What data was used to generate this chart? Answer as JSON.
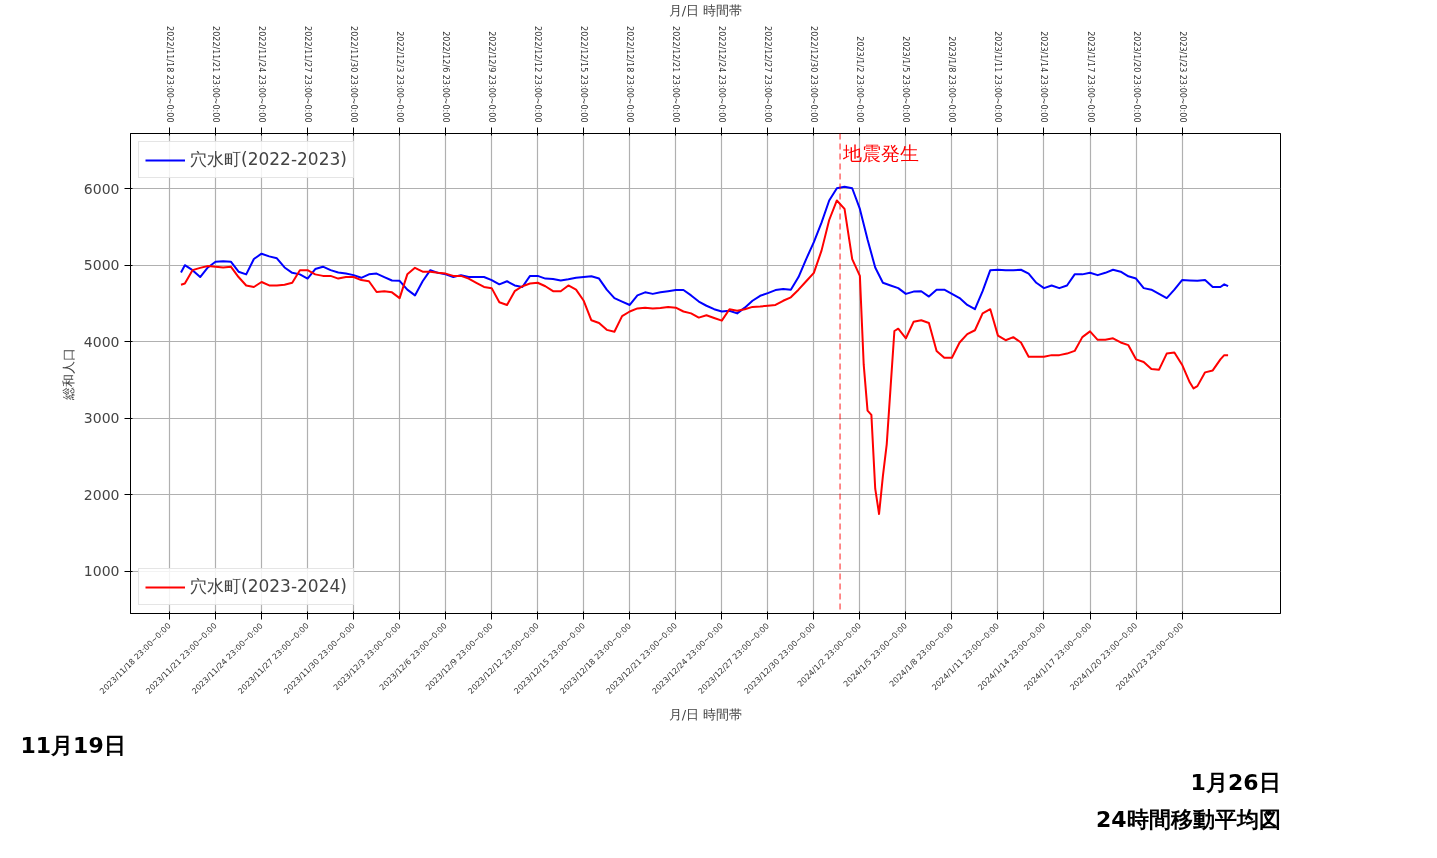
{
  "chart_data": {
    "type": "line",
    "xlabel": "月/日 時間帯",
    "x2label": "月/日 時間帯",
    "ylabel": "総和人口",
    "xlim": [
      "2023-11-16T10:00",
      "2024-01-30T09:00"
    ],
    "x2lim": [
      "2022-11-16T10:00",
      "2023-01-30T09:00"
    ],
    "ylim": [
      450,
      6720
    ],
    "yticks": [
      1000,
      2000,
      3000,
      4000,
      5000,
      6000
    ],
    "xticks": [
      {
        "value": "2023-11-18T23:00",
        "label": "2023/11/18 23:00~0:00"
      },
      {
        "value": "2023-11-21T23:00",
        "label": "2023/11/21 23:00~0:00"
      },
      {
        "value": "2023-11-24T23:00",
        "label": "2023/11/24 23:00~0:00"
      },
      {
        "value": "2023-11-27T23:00",
        "label": "2023/11/27 23:00~0:00"
      },
      {
        "value": "2023-11-30T23:00",
        "label": "2023/11/30 23:00~0:00"
      },
      {
        "value": "2023-12-03T23:00",
        "label": "2023/12/3 23:00~0:00"
      },
      {
        "value": "2023-12-06T23:00",
        "label": "2023/12/6 23:00~0:00"
      },
      {
        "value": "2023-12-09T23:00",
        "label": "2023/12/9 23:00~0:00"
      },
      {
        "value": "2023-12-12T23:00",
        "label": "2023/12/12 23:00~0:00"
      },
      {
        "value": "2023-12-15T23:00",
        "label": "2023/12/15 23:00~0:00"
      },
      {
        "value": "2023-12-18T23:00",
        "label": "2023/12/18 23:00~0:00"
      },
      {
        "value": "2023-12-21T23:00",
        "label": "2023/12/21 23:00~0:00"
      },
      {
        "value": "2023-12-24T23:00",
        "label": "2023/12/24 23:00~0:00"
      },
      {
        "value": "2023-12-27T23:00",
        "label": "2023/12/27 23:00~0:00"
      },
      {
        "value": "2023-12-30T23:00",
        "label": "2023/12/30 23:00~0:00"
      },
      {
        "value": "2024-01-02T23:00",
        "label": "2024/1/2 23:00~0:00"
      },
      {
        "value": "2024-01-05T23:00",
        "label": "2024/1/5 23:00~0:00"
      },
      {
        "value": "2024-01-08T23:00",
        "label": "2024/1/8 23:00~0:00"
      },
      {
        "value": "2024-01-11T23:00",
        "label": "2024/1/11 23:00~0:00"
      },
      {
        "value": "2024-01-14T23:00",
        "label": "2024/1/14 23:00~0:00"
      },
      {
        "value": "2024-01-17T23:00",
        "label": "2024/1/17 23:00~0:00"
      },
      {
        "value": "2024-01-20T23:00",
        "label": "2024/1/20 23:00~0:00"
      },
      {
        "value": "2024-01-23T23:00",
        "label": "2024/1/23 23:00~0:00"
      }
    ],
    "x2ticks": [
      {
        "value": "2022-11-18T23:00",
        "label": "2022/11/18 23:00~0:00"
      },
      {
        "value": "2022-11-21T23:00",
        "label": "2022/11/21 23:00~0:00"
      },
      {
        "value": "2022-11-24T23:00",
        "label": "2022/11/24 23:00~0:00"
      },
      {
        "value": "2022-11-27T23:00",
        "label": "2022/11/27 23:00~0:00"
      },
      {
        "value": "2022-11-30T23:00",
        "label": "2022/11/30 23:00~0:00"
      },
      {
        "value": "2022-12-03T23:00",
        "label": "2022/12/3 23:00~0:00"
      },
      {
        "value": "2022-12-06T23:00",
        "label": "2022/12/6 23:00~0:00"
      },
      {
        "value": "2022-12-09T23:00",
        "label": "2022/12/9 23:00~0:00"
      },
      {
        "value": "2022-12-12T23:00",
        "label": "2022/12/12 23:00~0:00"
      },
      {
        "value": "2022-12-15T23:00",
        "label": "2022/12/15 23:00~0:00"
      },
      {
        "value": "2022-12-18T23:00",
        "label": "2022/12/18 23:00~0:00"
      },
      {
        "value": "2022-12-21T23:00",
        "label": "2022/12/21 23:00~0:00"
      },
      {
        "value": "2022-12-24T23:00",
        "label": "2022/12/24 23:00~0:00"
      },
      {
        "value": "2022-12-27T23:00",
        "label": "2022/12/27 23:00~0:00"
      },
      {
        "value": "2022-12-30T23:00",
        "label": "2022/12/30 23:00~0:00"
      },
      {
        "value": "2023-01-02T23:00",
        "label": "2023/1/2 23:00~0:00"
      },
      {
        "value": "2023-01-05T23:00",
        "label": "2023/1/5 23:00~0:00"
      },
      {
        "value": "2023-01-08T23:00",
        "label": "2023/1/8 23:00~0:00"
      },
      {
        "value": "2023-01-11T23:00",
        "label": "2023/1/11 23:00~0:00"
      },
      {
        "value": "2023-01-14T23:00",
        "label": "2023/1/14 23:00~0:00"
      },
      {
        "value": "2023-01-17T23:00",
        "label": "2023/1/17 23:00~0:00"
      },
      {
        "value": "2023-01-20T23:00",
        "label": "2023/1/20 23:00~0:00"
      },
      {
        "value": "2023-01-23T23:00",
        "label": "2023/1/23 23:00~0:00"
      }
    ],
    "grid": true,
    "legend": "left",
    "ref_lines": [
      {
        "axis": "x",
        "value": "2024-01-01T16:00",
        "label": "地震発生",
        "color": "#ff0000",
        "line_style": "dashed"
      }
    ],
    "annotations": [
      "11月19日",
      "1月26日",
      "24時間移動平均図"
    ],
    "series": [
      {
        "name": "穴水町(2022-2023)",
        "color": "#0000ff",
        "axis": "x2",
        "x": [
          "2022-11-19T17:00",
          "2022-11-19T23:00",
          "2022-11-20T11:00",
          "2022-11-20T23:00",
          "2022-11-21T11:00",
          "2022-11-21T23:00",
          "2022-11-22T11:00",
          "2022-11-22T23:00",
          "2022-11-23T11:00",
          "2022-11-23T23:00",
          "2022-11-24T11:00",
          "2022-11-24T23:00",
          "2022-11-25T11:00",
          "2022-11-25T23:00",
          "2022-11-26T11:00",
          "2022-11-26T23:00",
          "2022-11-27T11:00",
          "2022-11-27T23:00",
          "2022-11-28T11:00",
          "2022-11-28T23:00",
          "2022-11-29T11:00",
          "2022-11-29T23:00",
          "2022-11-30T11:00",
          "2022-11-30T23:00",
          "2022-12-01T11:00",
          "2022-12-01T23:00",
          "2022-12-02T11:00",
          "2022-12-02T23:00",
          "2022-12-03T11:00",
          "2022-12-03T23:00",
          "2022-12-04T11:00",
          "2022-12-04T23:00",
          "2022-12-05T11:00",
          "2022-12-05T23:00",
          "2022-12-06T11:00",
          "2022-12-06T23:00",
          "2022-12-07T11:00",
          "2022-12-07T23:00",
          "2022-12-08T11:00",
          "2022-12-08T23:00",
          "2022-12-09T11:00",
          "2022-12-09T23:00",
          "2022-12-10T11:00",
          "2022-12-10T23:00",
          "2022-12-11T11:00",
          "2022-12-11T23:00",
          "2022-12-12T11:00",
          "2022-12-12T23:00",
          "2022-12-13T11:00",
          "2022-12-13T23:00",
          "2022-12-14T11:00",
          "2022-12-14T23:00",
          "2022-12-15T11:00",
          "2022-12-15T23:00",
          "2022-12-16T11:00",
          "2022-12-16T23:00",
          "2022-12-17T11:00",
          "2022-12-17T23:00",
          "2022-12-18T11:00",
          "2022-12-18T23:00",
          "2022-12-19T11:00",
          "2022-12-19T23:00",
          "2022-12-20T11:00",
          "2022-12-20T23:00",
          "2022-12-21T11:00",
          "2022-12-21T23:00",
          "2022-12-22T11:00",
          "2022-12-22T23:00",
          "2022-12-23T11:00",
          "2022-12-23T23:00",
          "2022-12-24T11:00",
          "2022-12-24T23:00",
          "2022-12-25T11:00",
          "2022-12-25T23:00",
          "2022-12-26T11:00",
          "2022-12-26T23:00",
          "2022-12-27T11:00",
          "2022-12-27T23:00",
          "2022-12-28T11:00",
          "2022-12-28T23:00",
          "2022-12-29T11:00",
          "2022-12-29T23:00",
          "2022-12-30T11:00",
          "2022-12-30T23:00",
          "2022-12-31T11:00",
          "2022-12-31T23:00",
          "2023-01-01T11:00",
          "2023-01-01T23:00",
          "2023-01-02T11:00",
          "2023-01-02T23:00",
          "2023-01-03T11:00",
          "2023-01-03T23:00",
          "2023-01-04T11:00",
          "2023-01-04T23:00",
          "2023-01-05T11:00",
          "2023-01-05T23:00",
          "2023-01-06T11:00",
          "2023-01-06T23:00",
          "2023-01-07T11:00",
          "2023-01-07T23:00",
          "2023-01-08T11:00",
          "2023-01-08T23:00",
          "2023-01-09T11:00",
          "2023-01-09T23:00",
          "2023-01-10T11:00",
          "2023-01-10T23:00",
          "2023-01-11T11:00",
          "2023-01-11T23:00",
          "2023-01-12T11:00",
          "2023-01-12T23:00",
          "2023-01-13T11:00",
          "2023-01-13T23:00",
          "2023-01-14T11:00",
          "2023-01-14T23:00",
          "2023-01-15T11:00",
          "2023-01-15T23:00",
          "2023-01-16T11:00",
          "2023-01-16T23:00",
          "2023-01-17T11:00",
          "2023-01-17T23:00",
          "2023-01-18T11:00",
          "2023-01-18T23:00",
          "2023-01-19T11:00",
          "2023-01-19T23:00",
          "2023-01-20T11:00",
          "2023-01-20T23:00",
          "2023-01-21T11:00",
          "2023-01-21T23:00",
          "2023-01-22T11:00",
          "2023-01-22T23:00",
          "2023-01-23T11:00",
          "2023-01-23T23:00",
          "2023-01-24T11:00",
          "2023-01-24T23:00",
          "2023-01-25T11:00",
          "2023-01-25T23:00",
          "2023-01-26T11:00",
          "2023-01-26T17:00",
          "2023-01-26T23:00"
        ],
        "values": [
          4905,
          5000,
          4935,
          4845,
          4970,
          5045,
          5050,
          5045,
          4915,
          4880,
          5080,
          5150,
          5115,
          5090,
          4970,
          4900,
          4880,
          4825,
          4950,
          4980,
          4935,
          4905,
          4890,
          4870,
          4835,
          4880,
          4890,
          4845,
          4800,
          4795,
          4680,
          4605,
          4790,
          4935,
          4900,
          4880,
          4845,
          4870,
          4845,
          4845,
          4845,
          4805,
          4750,
          4790,
          4735,
          4715,
          4860,
          4860,
          4825,
          4820,
          4800,
          4815,
          4835,
          4845,
          4855,
          4825,
          4680,
          4570,
          4525,
          4480,
          4605,
          4645,
          4625,
          4645,
          4660,
          4675,
          4675,
          4605,
          4525,
          4470,
          4425,
          4395,
          4405,
          4370,
          4445,
          4535,
          4600,
          4635,
          4675,
          4690,
          4680,
          4845,
          5080,
          5300,
          5555,
          5845,
          6005,
          6025,
          6005,
          5735,
          5335,
          4970,
          4770,
          4735,
          4700,
          4625,
          4655,
          4660,
          4590,
          4680,
          4680,
          4625,
          4570,
          4480,
          4425,
          4660,
          4935,
          4940,
          4935,
          4935,
          4940,
          4890,
          4770,
          4700,
          4735,
          4700,
          4735,
          4880,
          4880,
          4900,
          4870,
          4900,
          4940,
          4915,
          4855,
          4825,
          4700,
          4680,
          4625,
          4570,
          4680,
          4805,
          4800,
          4795,
          4805,
          4715,
          4715,
          4750,
          4725
        ]
      },
      {
        "name": "穴水町(2023-2024)",
        "color": "#ff0000",
        "x": [
          "2023-11-19T17:00",
          "2023-11-19T23:00",
          "2023-11-20T11:00",
          "2023-11-20T23:00",
          "2023-11-21T11:00",
          "2023-11-21T23:00",
          "2023-11-22T11:00",
          "2023-11-22T23:00",
          "2023-11-23T11:00",
          "2023-11-23T23:00",
          "2023-11-24T11:00",
          "2023-11-24T23:00",
          "2023-11-25T11:00",
          "2023-11-25T23:00",
          "2023-11-26T11:00",
          "2023-11-26T23:00",
          "2023-11-27T11:00",
          "2023-11-27T23:00",
          "2023-11-28T11:00",
          "2023-11-28T23:00",
          "2023-11-29T11:00",
          "2023-11-29T23:00",
          "2023-11-30T11:00",
          "2023-11-30T23:00",
          "2023-12-01T11:00",
          "2023-12-01T23:00",
          "2023-12-02T11:00",
          "2023-12-02T23:00",
          "2023-12-03T11:00",
          "2023-12-03T23:00",
          "2023-12-04T11:00",
          "2023-12-04T23:00",
          "2023-12-05T11:00",
          "2023-12-05T23:00",
          "2023-12-06T11:00",
          "2023-12-06T23:00",
          "2023-12-07T11:00",
          "2023-12-07T23:00",
          "2023-12-08T11:00",
          "2023-12-08T23:00",
          "2023-12-09T11:00",
          "2023-12-09T23:00",
          "2023-12-10T11:00",
          "2023-12-10T23:00",
          "2023-12-11T11:00",
          "2023-12-11T23:00",
          "2023-12-12T11:00",
          "2023-12-12T23:00",
          "2023-12-13T11:00",
          "2023-12-13T23:00",
          "2023-12-14T11:00",
          "2023-12-14T23:00",
          "2023-12-15T11:00",
          "2023-12-15T23:00",
          "2023-12-16T11:00",
          "2023-12-16T23:00",
          "2023-12-17T11:00",
          "2023-12-17T23:00",
          "2023-12-18T11:00",
          "2023-12-18T23:00",
          "2023-12-19T11:00",
          "2023-12-19T23:00",
          "2023-12-20T11:00",
          "2023-12-20T23:00",
          "2023-12-21T11:00",
          "2023-12-21T23:00",
          "2023-12-22T11:00",
          "2023-12-22T23:00",
          "2023-12-23T11:00",
          "2023-12-23T23:00",
          "2023-12-24T11:00",
          "2023-12-24T23:00",
          "2023-12-25T11:00",
          "2023-12-25T23:00",
          "2023-12-26T11:00",
          "2023-12-26T23:00",
          "2023-12-27T11:00",
          "2023-12-27T23:00",
          "2023-12-28T11:00",
          "2023-12-28T23:00",
          "2023-12-29T11:00",
          "2023-12-29T23:00",
          "2023-12-30T11:00",
          "2023-12-30T23:00",
          "2023-12-31T11:00",
          "2023-12-31T23:00",
          "2024-01-01T11:00",
          "2024-01-01T23:00",
          "2024-01-02T11:00",
          "2024-01-02T23:00",
          "2024-01-03T05:00",
          "2024-01-03T11:00",
          "2024-01-03T17:00",
          "2024-01-03T23:00",
          "2024-01-04T05:00",
          "2024-01-04T11:00",
          "2024-01-04T17:00",
          "2024-01-04T23:00",
          "2024-01-05T05:00",
          "2024-01-05T11:00",
          "2024-01-05T23:00",
          "2024-01-06T11:00",
          "2024-01-06T23:00",
          "2024-01-07T11:00",
          "2024-01-07T23:00",
          "2024-01-08T11:00",
          "2024-01-08T23:00",
          "2024-01-09T11:00",
          "2024-01-09T23:00",
          "2024-01-10T11:00",
          "2024-01-10T23:00",
          "2024-01-11T11:00",
          "2024-01-11T23:00",
          "2024-01-12T11:00",
          "2024-01-12T23:00",
          "2024-01-13T11:00",
          "2024-01-13T23:00",
          "2024-01-14T11:00",
          "2024-01-14T23:00",
          "2024-01-15T11:00",
          "2024-01-15T23:00",
          "2024-01-16T11:00",
          "2024-01-16T23:00",
          "2024-01-17T11:00",
          "2024-01-17T23:00",
          "2024-01-18T11:00",
          "2024-01-18T23:00",
          "2024-01-19T11:00",
          "2024-01-19T23:00",
          "2024-01-20T11:00",
          "2024-01-20T23:00",
          "2024-01-21T11:00",
          "2024-01-21T23:00",
          "2024-01-22T11:00",
          "2024-01-22T23:00",
          "2024-01-23T11:00",
          "2024-01-23T23:00",
          "2024-01-24T11:00",
          "2024-01-24T17:00",
          "2024-01-24T23:00",
          "2024-01-25T11:00",
          "2024-01-25T23:00",
          "2024-01-26T11:00",
          "2024-01-26T17:00",
          "2024-01-26T23:00"
        ],
        "values": [
          4745,
          4760,
          4935,
          4965,
          4990,
          4980,
          4970,
          4980,
          4845,
          4735,
          4715,
          4780,
          4735,
          4735,
          4745,
          4770,
          4935,
          4935,
          4880,
          4860,
          4860,
          4825,
          4845,
          4845,
          4805,
          4790,
          4650,
          4660,
          4645,
          4570,
          4880,
          4965,
          4915,
          4915,
          4900,
          4890,
          4860,
          4860,
          4825,
          4770,
          4715,
          4700,
          4515,
          4480,
          4660,
          4725,
          4760,
          4770,
          4725,
          4660,
          4660,
          4735,
          4680,
          4535,
          4280,
          4245,
          4155,
          4130,
          4335,
          4395,
          4435,
          4445,
          4435,
          4440,
          4455,
          4445,
          4395,
          4370,
          4315,
          4345,
          4310,
          4275,
          4425,
          4405,
          4425,
          4455,
          4460,
          4470,
          4480,
          4535,
          4580,
          4680,
          4790,
          4900,
          5190,
          5590,
          5845,
          5735,
          5080,
          4860,
          3700,
          3100,
          3045,
          2080,
          1750,
          2245,
          2660,
          3400,
          4140,
          4170,
          4045,
          4260,
          4280,
          4245,
          3880,
          3790,
          3790,
          3990,
          4100,
          4150,
          4370,
          4425,
          4080,
          4020,
          4060,
          3990,
          3805,
          3805,
          3805,
          3825,
          3825,
          3845,
          3880,
          4060,
          4135,
          4025,
          4025,
          4045,
          3990,
          3955,
          3770,
          3735,
          3645,
          3635,
          3845,
          3860,
          3700,
          3470,
          3390,
          3420,
          3600,
          3625,
          3770,
          3825,
          3825
        ]
      }
    ]
  }
}
